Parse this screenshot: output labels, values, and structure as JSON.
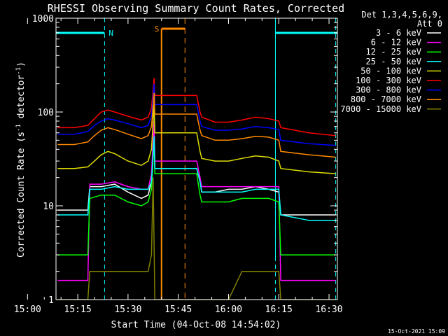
{
  "chart_data": {
    "type": "line",
    "title": "RHESSI Observing Summary Count Rates, Corrected",
    "xlabel": "Start Time (04-Oct-08 14:54:02)",
    "ylabel_main": "Corrected Count Rate (s",
    "ylabel_sup1": "-1",
    "ylabel_mid": " detector",
    "ylabel_sup2": "-1",
    "ylabel_end": ")",
    "yscale": "log",
    "ylim": [
      1,
      1000
    ],
    "xlim_minutes": [
      14.5,
      98.5
    ],
    "xticks": [
      {
        "m": 6,
        "label": "15:00"
      },
      {
        "m": 21,
        "label": "15:15"
      },
      {
        "m": 36,
        "label": "15:30"
      },
      {
        "m": 51,
        "label": "15:45"
      },
      {
        "m": 66,
        "label": "16:00"
      },
      {
        "m": 81,
        "label": "16:15"
      },
      {
        "m": 96,
        "label": "16:30"
      }
    ],
    "yticks": [
      {
        "v": 1,
        "label": "1"
      },
      {
        "v": 10,
        "label": "10"
      },
      {
        "v": 100,
        "label": "100"
      },
      {
        "v": 1000,
        "label": "1000"
      }
    ],
    "legend": {
      "header1": "Det 1,3,4,5,6,9,",
      "header2": "Att 0",
      "placement": "right"
    },
    "series": [
      {
        "name": "3 - 6 keV",
        "color": "#ffffff",
        "values": [
          [
            15,
            9
          ],
          [
            20,
            9
          ],
          [
            24,
            9
          ],
          [
            24.6,
            16
          ],
          [
            28,
            16
          ],
          [
            32,
            17
          ],
          [
            36,
            14
          ],
          [
            40,
            12
          ],
          [
            42,
            13
          ],
          [
            43,
            18
          ],
          [
            43.8,
            60
          ],
          [
            44,
            25
          ],
          [
            56.5,
            25
          ],
          [
            57.5,
            18
          ],
          [
            58,
            14
          ],
          [
            62,
            14
          ],
          [
            66,
            15
          ],
          [
            70,
            15
          ],
          [
            74,
            16
          ],
          [
            78,
            15
          ],
          [
            81,
            14
          ],
          [
            81.6,
            8
          ],
          [
            90,
            8
          ],
          [
            98,
            8
          ]
        ]
      },
      {
        "name": "6 - 12 keV",
        "color": "#ff00ff",
        "values": [
          [
            15,
            1.6
          ],
          [
            20,
            1.6
          ],
          [
            24,
            1.6
          ],
          [
            24.6,
            17
          ],
          [
            28,
            17
          ],
          [
            32,
            18
          ],
          [
            36,
            16
          ],
          [
            40,
            15
          ],
          [
            42,
            15
          ],
          [
            43,
            22
          ],
          [
            43.8,
            80
          ],
          [
            44,
            30
          ],
          [
            56.5,
            30
          ],
          [
            57.5,
            20
          ],
          [
            58,
            16
          ],
          [
            62,
            16
          ],
          [
            66,
            16
          ],
          [
            70,
            16
          ],
          [
            74,
            16
          ],
          [
            78,
            16
          ],
          [
            81,
            16
          ],
          [
            81.6,
            1.6
          ],
          [
            90,
            1.6
          ],
          [
            98,
            1.6
          ]
        ]
      },
      {
        "name": "12 - 25 keV",
        "color": "#00ff00",
        "values": [
          [
            15,
            3
          ],
          [
            20,
            3
          ],
          [
            24,
            3
          ],
          [
            24.6,
            12
          ],
          [
            28,
            13
          ],
          [
            32,
            13
          ],
          [
            36,
            11
          ],
          [
            40,
            10
          ],
          [
            42,
            11
          ],
          [
            43,
            15
          ],
          [
            43.8,
            50
          ],
          [
            44,
            22
          ],
          [
            56.5,
            22
          ],
          [
            57.5,
            13
          ],
          [
            58,
            11
          ],
          [
            62,
            11
          ],
          [
            66,
            11
          ],
          [
            70,
            12
          ],
          [
            74,
            12
          ],
          [
            78,
            12
          ],
          [
            81,
            11
          ],
          [
            81.6,
            3
          ],
          [
            90,
            3
          ],
          [
            98,
            3
          ]
        ]
      },
      {
        "name": "25 - 50 keV",
        "color": "#00ffff",
        "values": [
          [
            15,
            8
          ],
          [
            20,
            8
          ],
          [
            24,
            8
          ],
          [
            24.6,
            15
          ],
          [
            28,
            15
          ],
          [
            32,
            16
          ],
          [
            36,
            15
          ],
          [
            40,
            15
          ],
          [
            42,
            15
          ],
          [
            43,
            18
          ],
          [
            43.8,
            55
          ],
          [
            44,
            25
          ],
          [
            56.5,
            25
          ],
          [
            57.5,
            18
          ],
          [
            58,
            14
          ],
          [
            62,
            14
          ],
          [
            66,
            14
          ],
          [
            70,
            14
          ],
          [
            74,
            15
          ],
          [
            78,
            15
          ],
          [
            81,
            15
          ],
          [
            81.6,
            8
          ],
          [
            90,
            7
          ],
          [
            98,
            7
          ]
        ]
      },
      {
        "name": "50 - 100 keV",
        "color": "#dddd00",
        "values": [
          [
            15,
            25
          ],
          [
            20,
            25
          ],
          [
            24,
            26
          ],
          [
            26,
            30
          ],
          [
            28,
            35
          ],
          [
            30,
            38
          ],
          [
            32,
            36
          ],
          [
            36,
            30
          ],
          [
            40,
            27
          ],
          [
            42,
            30
          ],
          [
            43,
            40
          ],
          [
            43.8,
            120
          ],
          [
            44,
            60
          ],
          [
            56.5,
            60
          ],
          [
            57.5,
            38
          ],
          [
            58,
            32
          ],
          [
            62,
            30
          ],
          [
            66,
            30
          ],
          [
            70,
            32
          ],
          [
            74,
            34
          ],
          [
            78,
            33
          ],
          [
            81,
            30
          ],
          [
            81.6,
            25
          ],
          [
            90,
            23
          ],
          [
            98,
            22
          ]
        ]
      },
      {
        "name": "100 - 300 keV",
        "color": "#ff0000",
        "values": [
          [
            15,
            68
          ],
          [
            20,
            68
          ],
          [
            24,
            72
          ],
          [
            26,
            85
          ],
          [
            28,
            100
          ],
          [
            30,
            105
          ],
          [
            32,
            100
          ],
          [
            36,
            90
          ],
          [
            40,
            82
          ],
          [
            42,
            88
          ],
          [
            43,
            110
          ],
          [
            43.8,
            230
          ],
          [
            44,
            150
          ],
          [
            56.5,
            150
          ],
          [
            57.5,
            100
          ],
          [
            58,
            88
          ],
          [
            62,
            78
          ],
          [
            66,
            78
          ],
          [
            70,
            82
          ],
          [
            74,
            88
          ],
          [
            78,
            85
          ],
          [
            81,
            80
          ],
          [
            81.6,
            68
          ],
          [
            90,
            60
          ],
          [
            98,
            56
          ]
        ]
      },
      {
        "name": "300 - 800 keV",
        "color": "#0000ff",
        "values": [
          [
            15,
            58
          ],
          [
            20,
            58
          ],
          [
            24,
            62
          ],
          [
            26,
            72
          ],
          [
            28,
            80
          ],
          [
            30,
            85
          ],
          [
            32,
            82
          ],
          [
            36,
            75
          ],
          [
            40,
            68
          ],
          [
            42,
            72
          ],
          [
            43,
            90
          ],
          [
            43.8,
            200
          ],
          [
            44,
            120
          ],
          [
            56.5,
            120
          ],
          [
            57.5,
            80
          ],
          [
            58,
            70
          ],
          [
            62,
            64
          ],
          [
            66,
            64
          ],
          [
            70,
            66
          ],
          [
            74,
            70
          ],
          [
            78,
            68
          ],
          [
            81,
            65
          ],
          [
            81.6,
            50
          ],
          [
            90,
            46
          ],
          [
            98,
            44
          ]
        ]
      },
      {
        "name": "800 - 7000 keV",
        "color": "#ff8800",
        "values": [
          [
            15,
            45
          ],
          [
            20,
            45
          ],
          [
            24,
            48
          ],
          [
            26,
            56
          ],
          [
            28,
            64
          ],
          [
            30,
            68
          ],
          [
            32,
            65
          ],
          [
            36,
            58
          ],
          [
            40,
            52
          ],
          [
            42,
            56
          ],
          [
            43,
            70
          ],
          [
            43.8,
            160
          ],
          [
            44,
            95
          ],
          [
            56.5,
            95
          ],
          [
            57.5,
            64
          ],
          [
            58,
            56
          ],
          [
            62,
            50
          ],
          [
            66,
            50
          ],
          [
            70,
            52
          ],
          [
            74,
            55
          ],
          [
            78,
            54
          ],
          [
            81,
            50
          ],
          [
            81.6,
            38
          ],
          [
            90,
            35
          ],
          [
            98,
            33
          ]
        ]
      },
      {
        "name": "7000 - 15000 keV",
        "color": "#808000",
        "values": [
          [
            15,
            1
          ],
          [
            24,
            1
          ],
          [
            24.6,
            2
          ],
          [
            28,
            2
          ],
          [
            32,
            2
          ],
          [
            36,
            2
          ],
          [
            40,
            2
          ],
          [
            42,
            2
          ],
          [
            43,
            3
          ],
          [
            43.5,
            20
          ],
          [
            44,
            1
          ],
          [
            56.5,
            1
          ],
          [
            62,
            1
          ],
          [
            66,
            1
          ],
          [
            70,
            2
          ],
          [
            74,
            2
          ],
          [
            78,
            2
          ],
          [
            81,
            2
          ],
          [
            81.6,
            1
          ],
          [
            98,
            1
          ]
        ]
      }
    ],
    "annotations": {
      "night": {
        "label": "N",
        "color": "#00ffff",
        "intervals": [
          [
            14.5,
            29
          ],
          [
            80,
            98.5
          ]
        ]
      },
      "saa": {
        "label": "S",
        "color": "#ff8800",
        "intervals": [
          [
            46,
            53
          ]
        ]
      },
      "dashed_cyan_minutes": [
        29,
        80,
        98
      ],
      "dashed_orange_minutes": [
        53
      ]
    },
    "timestamp": "15-Oct-2021 15:09"
  }
}
